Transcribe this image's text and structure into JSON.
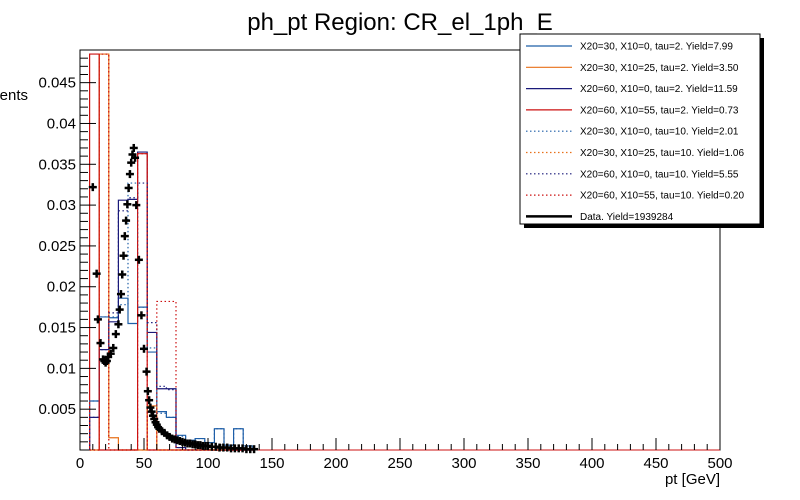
{
  "chart_data": {
    "type": "line",
    "title": "ph_pt Region: CR_el_1ph_E",
    "xlabel": "pt [GeV]",
    "ylabel": "Events",
    "xlim": [
      0,
      500
    ],
    "ylim": [
      0,
      0.049
    ],
    "xticks": [
      0,
      50,
      100,
      150,
      200,
      250,
      300,
      350,
      400,
      450,
      500
    ],
    "xtick_labels": [
      "0",
      "50",
      "100",
      "150",
      "200",
      "250",
      "300",
      "350",
      "400",
      "450",
      "500"
    ],
    "yticks": [
      0.005,
      0.01,
      0.015,
      0.02,
      0.025,
      0.03,
      0.035,
      0.04,
      0.045
    ],
    "ytick_labels": [
      "0.005",
      "0.01",
      "0.015",
      "0.02",
      "0.025",
      "0.03",
      "0.035",
      "0.04",
      "0.045"
    ],
    "grid": false,
    "legend_position": "top-right",
    "bin_edges": [
      7.5,
      15,
      22.5,
      30,
      37.5,
      45,
      52.5,
      60,
      67.5,
      75,
      82.5,
      90,
      97.5,
      105,
      112.5,
      120,
      127.5,
      135
    ],
    "series": [
      {
        "name": "X20=30, X10=0, tau=2. Yield=7.99",
        "color": "#1f5fa8",
        "style": "solid",
        "values": [
          0.006,
          0.0163,
          0.0162,
          0.0186,
          0.0155,
          0.0175,
          0.012,
          0.0047,
          0.004,
          0.0018,
          0.0012,
          0.0014,
          0.0009,
          0.0026,
          0.0006,
          0.0026,
          0.0005
        ]
      },
      {
        "name": "X20=30, X10=25, tau=2. Yield=3.50",
        "color": "#e8701a",
        "style": "solid",
        "values": [
          0.0,
          0.0485,
          0.0015,
          0.0,
          0.0,
          0.0,
          0.0054,
          0.0,
          0.0,
          0.0,
          0.0,
          0.0,
          0.0,
          0.0,
          0.0,
          0.0,
          0.0
        ]
      },
      {
        "name": "X20=60, X10=0, tau=2. Yield=11.59",
        "color": "#1a1a7a",
        "style": "solid",
        "values": [
          0.004,
          0.0123,
          0.0157,
          0.0306,
          0.0307,
          0.0365,
          0.0144,
          0.0075,
          0.0075,
          0.0003,
          0.0,
          0.0,
          0.0,
          0.0,
          0.0,
          0.0,
          0.0
        ]
      },
      {
        "name": "X20=60, X10=55, tau=2. Yield=0.73",
        "color": "#cc1111",
        "style": "solid",
        "values": [
          0.0485,
          0.0,
          0.0,
          0.0,
          0.0,
          0.0363,
          0.0,
          0.0,
          0.0,
          0.0,
          0.0,
          0.0,
          0.0,
          0.0,
          0.0,
          0.0,
          0.0
        ]
      },
      {
        "name": "X20=30, X10=0, tau=10. Yield=2.01",
        "color": "#1f5fa8",
        "style": "dotted",
        "values": [
          0.006,
          0.0163,
          0.0163,
          0.0178,
          0.0327,
          0.0175,
          0.0125,
          0.0045,
          0.004,
          0.0017,
          0.0011,
          0.0014,
          0.0009,
          0.0026,
          0.0006,
          0.0026,
          0.0005
        ]
      },
      {
        "name": "X20=30, X10=25, tau=10. Yield=1.06",
        "color": "#e8701a",
        "style": "dotted",
        "values": [
          0.0,
          0.0485,
          0.0,
          0.0,
          0.0,
          0.0,
          0.0054,
          0.0,
          0.0,
          0.0,
          0.0,
          0.0,
          0.0,
          0.0,
          0.0,
          0.0,
          0.0
        ]
      },
      {
        "name": "X20=60, X10=0, tau=10. Yield=5.55",
        "color": "#1a1a7a",
        "style": "dotted",
        "values": [
          0.004,
          0.0123,
          0.0168,
          0.0293,
          0.0309,
          0.0327,
          0.0156,
          0.0078,
          0.0074,
          0.0003,
          0.0,
          0.0,
          0.0,
          0.0,
          0.0,
          0.0,
          0.0
        ]
      },
      {
        "name": "X20=60, X10=55, tau=10. Yield=0.20",
        "color": "#cc1111",
        "style": "dotted",
        "values": [
          0.0,
          0.0485,
          0.0,
          0.0,
          0.0,
          0.0363,
          0.0,
          0.0182,
          0.0182,
          0.0,
          0.0,
          0.0,
          0.0,
          0.0,
          0.0,
          0.0,
          0.0
        ]
      }
    ],
    "data_series": {
      "name": "Data. Yield=1939284",
      "color": "#000000",
      "points": [
        {
          "x": 10,
          "y": 0.0322
        },
        {
          "x": 13,
          "y": 0.0216
        },
        {
          "x": 14,
          "y": 0.016
        },
        {
          "x": 16,
          "y": 0.0131
        },
        {
          "x": 18,
          "y": 0.0111
        },
        {
          "x": 19,
          "y": 0.0109
        },
        {
          "x": 20,
          "y": 0.0107
        },
        {
          "x": 21,
          "y": 0.0109
        },
        {
          "x": 22,
          "y": 0.0114
        },
        {
          "x": 24,
          "y": 0.0118
        },
        {
          "x": 26,
          "y": 0.0125
        },
        {
          "x": 28,
          "y": 0.0142
        },
        {
          "x": 30,
          "y": 0.0154
        },
        {
          "x": 31,
          "y": 0.0172
        },
        {
          "x": 32,
          "y": 0.0191
        },
        {
          "x": 33,
          "y": 0.0215
        },
        {
          "x": 34,
          "y": 0.0238
        },
        {
          "x": 35,
          "y": 0.0262
        },
        {
          "x": 36,
          "y": 0.0281
        },
        {
          "x": 37,
          "y": 0.0301
        },
        {
          "x": 38,
          "y": 0.0321
        },
        {
          "x": 39,
          "y": 0.0338
        },
        {
          "x": 40,
          "y": 0.0352
        },
        {
          "x": 41,
          "y": 0.0362
        },
        {
          "x": 42,
          "y": 0.037
        },
        {
          "x": 43,
          "y": 0.0358
        },
        {
          "x": 44,
          "y": 0.03
        },
        {
          "x": 46,
          "y": 0.0233
        },
        {
          "x": 48,
          "y": 0.0165
        },
        {
          "x": 50,
          "y": 0.0124
        },
        {
          "x": 52,
          "y": 0.0096
        },
        {
          "x": 53,
          "y": 0.0072
        },
        {
          "x": 54,
          "y": 0.0061
        },
        {
          "x": 55,
          "y": 0.0052
        },
        {
          "x": 56,
          "y": 0.0047
        },
        {
          "x": 57,
          "y": 0.0042
        },
        {
          "x": 58,
          "y": 0.0038
        },
        {
          "x": 59,
          "y": 0.0034
        },
        {
          "x": 60,
          "y": 0.0031
        },
        {
          "x": 61,
          "y": 0.0028
        },
        {
          "x": 62,
          "y": 0.0026
        },
        {
          "x": 64,
          "y": 0.0023
        },
        {
          "x": 66,
          "y": 0.0021
        },
        {
          "x": 68,
          "y": 0.0018
        },
        {
          "x": 70,
          "y": 0.0016
        },
        {
          "x": 72,
          "y": 0.0014
        },
        {
          "x": 74,
          "y": 0.0013
        },
        {
          "x": 76,
          "y": 0.0012
        },
        {
          "x": 78,
          "y": 0.0011
        },
        {
          "x": 80,
          "y": 0.001
        },
        {
          "x": 82,
          "y": 0.0009
        },
        {
          "x": 84,
          "y": 0.0008
        },
        {
          "x": 86,
          "y": 0.0008
        },
        {
          "x": 88,
          "y": 0.0007
        },
        {
          "x": 90,
          "y": 0.0007
        },
        {
          "x": 92,
          "y": 0.0006
        },
        {
          "x": 94,
          "y": 0.0006
        },
        {
          "x": 96,
          "y": 0.0005
        },
        {
          "x": 98,
          "y": 0.0005
        },
        {
          "x": 100,
          "y": 0.0005
        },
        {
          "x": 103,
          "y": 0.0004
        },
        {
          "x": 106,
          "y": 0.0004
        },
        {
          "x": 109,
          "y": 0.0003
        },
        {
          "x": 112,
          "y": 0.0003
        },
        {
          "x": 115,
          "y": 0.0003
        },
        {
          "x": 118,
          "y": 0.0002
        },
        {
          "x": 121,
          "y": 0.0002
        },
        {
          "x": 124,
          "y": 0.0002
        },
        {
          "x": 127,
          "y": 0.0002
        },
        {
          "x": 130,
          "y": 0.0001
        },
        {
          "x": 133,
          "y": 0.0001
        },
        {
          "x": 136,
          "y": 0.0001
        }
      ]
    }
  }
}
